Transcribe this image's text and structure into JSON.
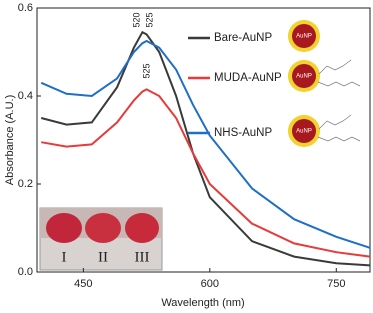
{
  "chart_data": {
    "type": "line",
    "xlabel": "Wavelength (nm)",
    "ylabel": "Absorbance (A.U.)",
    "x": [
      400,
      430,
      460,
      490,
      510,
      520,
      525,
      540,
      560,
      580,
      600,
      650,
      700,
      750,
      790
    ],
    "series": [
      {
        "name": "Bare-AuNP",
        "color": "#3a3a3a",
        "values": [
          0.35,
          0.335,
          0.34,
          0.42,
          0.51,
          0.545,
          0.54,
          0.5,
          0.4,
          0.27,
          0.17,
          0.07,
          0.035,
          0.02,
          0.015
        ]
      },
      {
        "name": "MUDA-AuNP",
        "color": "#e8393b",
        "values": [
          0.295,
          0.285,
          0.29,
          0.34,
          0.39,
          0.41,
          0.415,
          0.4,
          0.35,
          0.27,
          0.2,
          0.11,
          0.065,
          0.045,
          0.035
        ]
      },
      {
        "name": "NHS-AuNP",
        "color": "#1f6fc5",
        "values": [
          0.43,
          0.405,
          0.4,
          0.44,
          0.5,
          0.52,
          0.525,
          0.51,
          0.46,
          0.38,
          0.31,
          0.19,
          0.12,
          0.08,
          0.055
        ]
      }
    ],
    "xlim": [
      395,
      790
    ],
    "xticks": [
      450,
      600,
      750
    ],
    "ylim": [
      0,
      0.6
    ],
    "yticks": [
      {
        "value": 0,
        "label": "0.0"
      },
      0.2,
      0.4,
      0.6
    ],
    "peak_labels": [
      "520",
      "525",
      "525"
    ],
    "particle_label": "AuNP",
    "inset_labels": [
      "I",
      "II",
      "III"
    ]
  }
}
